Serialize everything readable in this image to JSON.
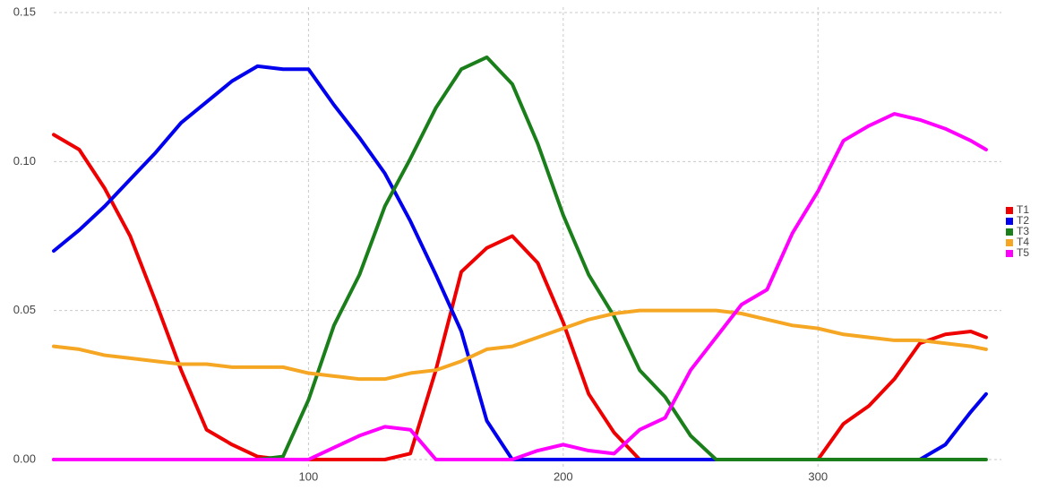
{
  "chart_data": {
    "type": "line",
    "x": [
      0,
      10,
      20,
      30,
      40,
      50,
      60,
      70,
      80,
      90,
      100,
      110,
      120,
      130,
      140,
      150,
      160,
      170,
      180,
      190,
      200,
      210,
      220,
      230,
      240,
      250,
      260,
      270,
      280,
      290,
      300,
      310,
      320,
      330,
      340,
      350,
      360,
      366
    ],
    "series": [
      {
        "name": "T1",
        "color": "#ee0000",
        "values": [
          0.109,
          0.104,
          0.091,
          0.075,
          0.053,
          0.03,
          0.01,
          0.005,
          0.001,
          0,
          0,
          0,
          0,
          0,
          0.002,
          0.03,
          0.063,
          0.071,
          0.075,
          0.066,
          0.046,
          0.022,
          0.009,
          0,
          0,
          0,
          0,
          0,
          0,
          0,
          0,
          0.012,
          0.018,
          0.027,
          0.039,
          0.042,
          0.043,
          0.041
        ]
      },
      {
        "name": "T2",
        "color": "#0000ee",
        "values": [
          0.07,
          0.077,
          0.085,
          0.094,
          0.103,
          0.113,
          0.12,
          0.127,
          0.132,
          0.131,
          0.131,
          0.119,
          0.108,
          0.096,
          0.08,
          0.062,
          0.043,
          0.013,
          0,
          0,
          0,
          0,
          0,
          0,
          0,
          0,
          0,
          0,
          0,
          0,
          0,
          0,
          0,
          0,
          0,
          0.005,
          0.016,
          0.022
        ]
      },
      {
        "name": "T3",
        "color": "#1a7f1a",
        "values": [
          0,
          0,
          0,
          0,
          0,
          0,
          0,
          0,
          0,
          0.001,
          0.02,
          0.045,
          0.062,
          0.085,
          0.101,
          0.118,
          0.131,
          0.135,
          0.126,
          0.106,
          0.082,
          0.062,
          0.048,
          0.03,
          0.021,
          0.008,
          0,
          0,
          0,
          0,
          0,
          0,
          0,
          0,
          0,
          0,
          0,
          0
        ]
      },
      {
        "name": "T4",
        "color": "#f5a623",
        "values": [
          0.038,
          0.037,
          0.035,
          0.034,
          0.033,
          0.032,
          0.032,
          0.031,
          0.031,
          0.031,
          0.029,
          0.028,
          0.027,
          0.027,
          0.029,
          0.03,
          0.033,
          0.037,
          0.038,
          0.041,
          0.044,
          0.047,
          0.049,
          0.05,
          0.05,
          0.05,
          0.05,
          0.049,
          0.047,
          0.045,
          0.044,
          0.042,
          0.041,
          0.04,
          0.04,
          0.039,
          0.038,
          0.037
        ]
      },
      {
        "name": "T5",
        "color": "#ff00ff",
        "values": [
          0,
          0,
          0,
          0,
          0,
          0,
          0,
          0,
          0,
          0,
          0,
          0.004,
          0.008,
          0.011,
          0.01,
          0,
          0,
          0,
          0,
          0.003,
          0.005,
          0.003,
          0.002,
          0.01,
          0.014,
          0.03,
          0.041,
          0.052,
          0.057,
          0.076,
          0.09,
          0.107,
          0.112,
          0.116,
          0.114,
          0.111,
          0.107,
          0.104
        ]
      }
    ],
    "xlim": [
      0,
      372
    ],
    "xticks": [
      100,
      200,
      300
    ],
    "ylim": [
      0,
      0.15
    ],
    "yticks": [
      {
        "value": 0,
        "label": "0.00"
      },
      {
        "value": 0.05,
        "label": "0.05"
      },
      {
        "value": 0.1,
        "label": "0.10"
      },
      {
        "value": 0.15,
        "label": "0.15"
      }
    ],
    "grid": true,
    "legend": "right"
  }
}
